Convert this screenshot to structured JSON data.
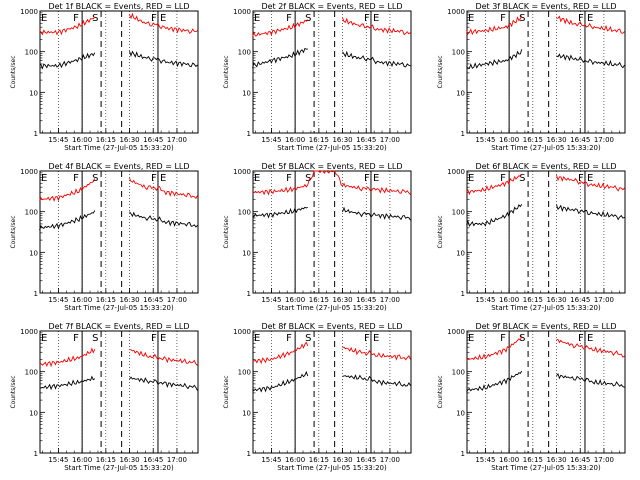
{
  "chart_data": [
    {
      "type": "line",
      "title": "Det  1f  BLACK = Events, RED = LLD",
      "xlabel": "Start Time (27-Jul-05 15:33:20)",
      "ylabel": "Counts/sec",
      "yscale": "log",
      "ylim": [
        1,
        1000
      ],
      "xlim": [
        "15:33:20",
        "17:13:20"
      ],
      "x_ticks": [
        "15:45",
        "16:00",
        "16:15",
        "16:30",
        "16:45",
        "17:00"
      ],
      "y_ticks": [
        "1",
        "10",
        "100",
        "1000"
      ],
      "interval_labels": [
        "E",
        "F",
        "S",
        "F",
        "E"
      ],
      "interval_lines": {
        "solid": [
          "16:00",
          "16:48"
        ],
        "dashed": [
          "16:12",
          "16:25"
        ]
      },
      "x": [
        "15:33",
        "15:45",
        "15:58",
        "16:08",
        "16:12",
        "16:25",
        "16:30",
        "16:40",
        "16:48",
        "16:53",
        "17:05",
        "17:13"
      ],
      "series": [
        {
          "name": "BLACK = Events",
          "color": "#000000",
          "values": [
            45,
            45,
            65,
            90,
            null,
            null,
            95,
            70,
            65,
            55,
            50,
            45
          ]
        },
        {
          "name": "RED = LLD",
          "color": "#ff0000",
          "values": [
            300,
            300,
            430,
            700,
            null,
            null,
            800,
            500,
            450,
            380,
            330,
            310
          ]
        }
      ]
    },
    {
      "type": "line",
      "title": "Det  2f  BLACK = Events, RED = LLD",
      "xlabel": "Start Time (27-Jul-05 15:33:20)",
      "ylabel": "Counts/sec",
      "yscale": "log",
      "ylim": [
        1,
        1000
      ],
      "xlim": [
        "15:33:20",
        "17:13:20"
      ],
      "x_ticks": [
        "15:45",
        "16:00",
        "16:15",
        "16:30",
        "16:45",
        "17:00"
      ],
      "y_ticks": [
        "1",
        "10",
        "100",
        "1000"
      ],
      "interval_labels": [
        "E",
        "F",
        "S",
        "F",
        "E"
      ],
      "interval_lines": {
        "solid": [
          "16:00",
          "16:48"
        ],
        "dashed": [
          "16:12",
          "16:25"
        ]
      },
      "x": [
        "15:33",
        "15:45",
        "15:58",
        "16:08",
        "16:12",
        "16:25",
        "16:30",
        "16:40",
        "16:48",
        "16:53",
        "17:05",
        "17:13"
      ],
      "series": [
        {
          "name": "BLACK = Events",
          "color": "#000000",
          "values": [
            45,
            60,
            80,
            120,
            null,
            null,
            90,
            70,
            65,
            55,
            50,
            45
          ]
        },
        {
          "name": "RED = LLD",
          "color": "#ff0000",
          "values": [
            250,
            300,
            400,
            600,
            null,
            null,
            600,
            450,
            400,
            350,
            320,
            280
          ]
        }
      ]
    },
    {
      "type": "line",
      "title": "Det  3f  BLACK = Events, RED = LLD",
      "xlabel": "Start Time (27-Jul-05 15:33:20)",
      "ylabel": "Counts/sec",
      "yscale": "log",
      "ylim": [
        1,
        1000
      ],
      "xlim": [
        "15:33:20",
        "17:13:20"
      ],
      "x_ticks": [
        "15:45",
        "16:00",
        "16:15",
        "16:30",
        "16:45",
        "17:00"
      ],
      "y_ticks": [
        "1",
        "10",
        "100",
        "1000"
      ],
      "interval_labels": [
        "E",
        "F",
        "S",
        "F",
        "E"
      ],
      "interval_lines": {
        "solid": [
          "16:00",
          "16:48"
        ],
        "dashed": [
          "16:12",
          "16:25"
        ]
      },
      "x": [
        "15:33",
        "15:45",
        "15:58",
        "16:08",
        "16:12",
        "16:25",
        "16:30",
        "16:40",
        "16:48",
        "16:53",
        "17:05",
        "17:13"
      ],
      "series": [
        {
          "name": "BLACK = Events",
          "color": "#000000",
          "values": [
            40,
            50,
            60,
            100,
            null,
            null,
            80,
            70,
            60,
            55,
            50,
            45
          ]
        },
        {
          "name": "RED = LLD",
          "color": "#ff0000",
          "values": [
            300,
            330,
            400,
            700,
            null,
            null,
            700,
            500,
            450,
            400,
            350,
            300
          ]
        }
      ]
    },
    {
      "type": "line",
      "title": "Det  4f  BLACK = Events, RED = LLD",
      "xlabel": "Start Time (27-Jul-05 15:33:20)",
      "ylabel": "Counts/sec",
      "yscale": "log",
      "ylim": [
        1,
        1000
      ],
      "xlim": [
        "15:33:20",
        "17:13:20"
      ],
      "x_ticks": [
        "15:45",
        "16:00",
        "16:15",
        "16:30",
        "16:45",
        "17:00"
      ],
      "y_ticks": [
        "1",
        "10",
        "100",
        "1000"
      ],
      "interval_labels": [
        "E",
        "F",
        "S",
        "F",
        "E"
      ],
      "interval_lines": {
        "solid": [
          "16:00",
          "16:48"
        ],
        "dashed": [
          "16:12",
          "16:25"
        ]
      },
      "x": [
        "15:33",
        "15:45",
        "15:58",
        "16:08",
        "16:12",
        "16:25",
        "16:30",
        "16:40",
        "16:48",
        "16:53",
        "17:05",
        "17:13"
      ],
      "series": [
        {
          "name": "BLACK = Events",
          "color": "#000000",
          "values": [
            40,
            45,
            65,
            100,
            null,
            null,
            90,
            70,
            65,
            55,
            50,
            45
          ]
        },
        {
          "name": "RED = LLD",
          "color": "#ff0000",
          "values": [
            200,
            220,
            320,
            600,
            null,
            null,
            600,
            400,
            380,
            300,
            260,
            230
          ]
        }
      ]
    },
    {
      "type": "line",
      "title": "Det  5f  BLACK = Events, RED = LLD",
      "xlabel": "Start Time (27-Jul-05 15:33:20)",
      "ylabel": "Counts/sec",
      "yscale": "log",
      "ylim": [
        1,
        1000
      ],
      "xlim": [
        "15:33:20",
        "17:13:20"
      ],
      "x_ticks": [
        "15:45",
        "16:00",
        "16:15",
        "16:30",
        "16:45",
        "17:00"
      ],
      "y_ticks": [
        "1",
        "10",
        "100",
        "1000"
      ],
      "interval_labels": [
        "E",
        "F",
        "S",
        "F",
        "E"
      ],
      "interval_lines": {
        "solid": [
          "16:00",
          "16:48"
        ],
        "dashed": [
          "16:12",
          "16:25"
        ]
      },
      "x": [
        "15:33",
        "15:45",
        "15:58",
        "16:08",
        "16:12",
        "16:25",
        "16:30",
        "16:40",
        "16:48",
        "16:53",
        "17:05",
        "17:13"
      ],
      "series": [
        {
          "name": "BLACK = Events",
          "color": "#000000",
          "values": [
            80,
            85,
            100,
            130,
            null,
            null,
            110,
            90,
            85,
            80,
            75,
            70
          ]
        },
        {
          "name": "RED = LLD",
          "color": "#ff0000",
          "values": [
            300,
            310,
            350,
            450,
            1000,
            1000,
            450,
            380,
            360,
            340,
            320,
            300
          ]
        }
      ]
    },
    {
      "type": "line",
      "title": "Det  6f  BLACK = Events, RED = LLD",
      "xlabel": "Start Time (27-Jul-05 15:33:20)",
      "ylabel": "Counts/sec",
      "yscale": "log",
      "ylim": [
        1,
        1000
      ],
      "xlim": [
        "15:33:20",
        "17:13:20"
      ],
      "x_ticks": [
        "15:45",
        "16:00",
        "16:15",
        "16:30",
        "16:45",
        "17:00"
      ],
      "y_ticks": [
        "1",
        "10",
        "100",
        "1000"
      ],
      "interval_labels": [
        "E",
        "F",
        "S",
        "F",
        "E"
      ],
      "interval_lines": {
        "solid": [
          "16:00",
          "16:48"
        ],
        "dashed": [
          "16:12",
          "16:25"
        ]
      },
      "x": [
        "15:33",
        "15:45",
        "15:58",
        "16:08",
        "16:12",
        "16:25",
        "16:30",
        "16:40",
        "16:48",
        "16:53",
        "17:05",
        "17:13"
      ],
      "series": [
        {
          "name": "BLACK = Events",
          "color": "#000000",
          "values": [
            50,
            50,
            80,
            150,
            null,
            null,
            130,
            110,
            100,
            90,
            80,
            70
          ]
        },
        {
          "name": "RED = LLD",
          "color": "#ff0000",
          "values": [
            300,
            350,
            500,
            800,
            null,
            null,
            700,
            600,
            500,
            450,
            400,
            350
          ]
        }
      ]
    },
    {
      "type": "line",
      "title": "Det  7f  BLACK = Events, RED = LLD",
      "xlabel": "Start Time (27-Jul-05 15:33:20)",
      "ylabel": "Counts/sec",
      "yscale": "log",
      "ylim": [
        1,
        1000
      ],
      "xlim": [
        "15:33:20",
        "17:13:20"
      ],
      "x_ticks": [
        "15:45",
        "16:00",
        "16:15",
        "16:30",
        "16:45",
        "17:00"
      ],
      "y_ticks": [
        "1",
        "10",
        "100",
        "1000"
      ],
      "interval_labels": [
        "E",
        "F",
        "S",
        "F",
        "E"
      ],
      "interval_lines": {
        "solid": [
          "16:00",
          "16:48"
        ],
        "dashed": [
          "16:12",
          "16:25"
        ]
      },
      "x": [
        "15:33",
        "15:45",
        "15:58",
        "16:08",
        "16:12",
        "16:25",
        "16:30",
        "16:40",
        "16:48",
        "16:53",
        "17:05",
        "17:13"
      ],
      "series": [
        {
          "name": "BLACK = Events",
          "color": "#000000",
          "values": [
            40,
            45,
            55,
            70,
            null,
            null,
            70,
            60,
            55,
            50,
            45,
            40
          ]
        },
        {
          "name": "RED = LLD",
          "color": "#ff0000",
          "values": [
            150,
            170,
            220,
            350,
            null,
            null,
            350,
            250,
            220,
            200,
            180,
            160
          ]
        }
      ]
    },
    {
      "type": "line",
      "title": "Det  8f  BLACK = Events, RED = LLD",
      "xlabel": "Start Time (27-Jul-05 15:33:20)",
      "ylabel": "Counts/sec",
      "yscale": "log",
      "ylim": [
        1,
        1000
      ],
      "xlim": [
        "15:33:20",
        "17:13:20"
      ],
      "x_ticks": [
        "15:45",
        "16:00",
        "16:15",
        "16:30",
        "16:45",
        "17:00"
      ],
      "y_ticks": [
        "1",
        "10",
        "100",
        "1000"
      ],
      "interval_labels": [
        "E",
        "F",
        "S",
        "F",
        "E"
      ],
      "interval_lines": {
        "solid": [
          "16:00",
          "16:48"
        ],
        "dashed": [
          "16:12",
          "16:25"
        ]
      },
      "x": [
        "15:33",
        "15:45",
        "15:58",
        "16:08",
        "16:12",
        "16:25",
        "16:30",
        "16:40",
        "16:48",
        "16:53",
        "17:05",
        "17:13"
      ],
      "series": [
        {
          "name": "BLACK = Events",
          "color": "#000000",
          "values": [
            35,
            40,
            60,
            90,
            null,
            null,
            80,
            70,
            65,
            55,
            50,
            45
          ]
        },
        {
          "name": "RED = LLD",
          "color": "#ff0000",
          "values": [
            180,
            200,
            300,
            500,
            null,
            null,
            400,
            300,
            280,
            250,
            230,
            210
          ]
        }
      ]
    },
    {
      "type": "line",
      "title": "Det  9f  BLACK = Events, RED = LLD",
      "xlabel": "Start Time (27-Jul-05 15:33:20)",
      "ylabel": "Counts/sec",
      "yscale": "log",
      "ylim": [
        1,
        1000
      ],
      "xlim": [
        "15:33:20",
        "17:13:20"
      ],
      "x_ticks": [
        "15:45",
        "16:00",
        "16:15",
        "16:30",
        "16:45",
        "17:00"
      ],
      "y_ticks": [
        "1",
        "10",
        "100",
        "1000"
      ],
      "interval_labels": [
        "E",
        "F",
        "S",
        "F",
        "E"
      ],
      "interval_lines": {
        "solid": [
          "16:00",
          "16:48"
        ],
        "dashed": [
          "16:12",
          "16:25"
        ]
      },
      "x": [
        "15:33",
        "15:45",
        "15:58",
        "16:08",
        "16:12",
        "16:25",
        "16:30",
        "16:40",
        "16:48",
        "16:53",
        "17:05",
        "17:13"
      ],
      "series": [
        {
          "name": "BLACK = Events",
          "color": "#000000",
          "values": [
            35,
            40,
            60,
            100,
            null,
            null,
            80,
            70,
            65,
            55,
            50,
            45
          ]
        },
        {
          "name": "RED = LLD",
          "color": "#ff0000",
          "values": [
            200,
            230,
            350,
            700,
            null,
            null,
            600,
            450,
            400,
            350,
            300,
            250
          ]
        }
      ]
    }
  ]
}
